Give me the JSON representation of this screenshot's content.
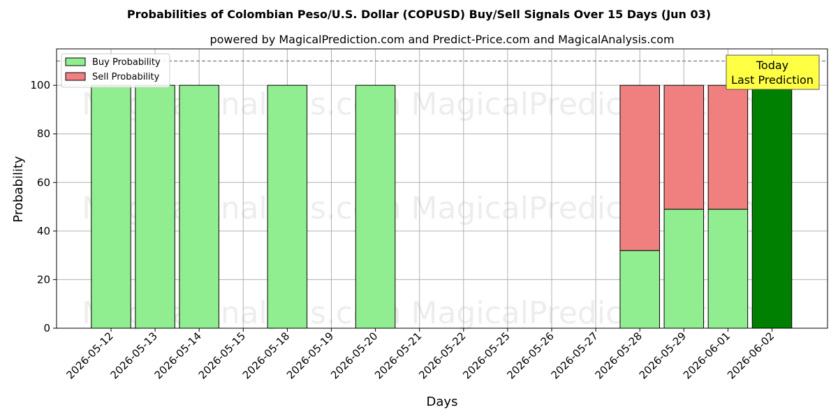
{
  "chart_data": {
    "type": "bar",
    "title": "Probabilities of Colombian Peso/U.S. Dollar (COPUSD) Buy/Sell Signals Over 15 Days (Jun 03)",
    "subtitle": "powered by MagicalPrediction.com and Predict-Price.com and MagicalAnalysis.com",
    "xlabel": "Days",
    "ylabel": "Probability",
    "ylim": [
      0,
      115
    ],
    "yticks": [
      0,
      20,
      40,
      60,
      80,
      100
    ],
    "grid": true,
    "legend_position": "top-left",
    "reference_line": 110,
    "categories": [
      "2026-05-12",
      "2026-05-13",
      "2026-05-14",
      "2026-05-15",
      "2026-05-18",
      "2026-05-19",
      "2026-05-20",
      "2026-05-21",
      "2026-05-22",
      "2026-05-25",
      "2026-05-26",
      "2026-05-27",
      "2026-05-28",
      "2026-05-29",
      "2026-06-01",
      "2026-06-02"
    ],
    "series": [
      {
        "name": "Buy Probability",
        "color": "#90ee90",
        "values": [
          100,
          100,
          100,
          0,
          100,
          0,
          100,
          0,
          0,
          0,
          0,
          0,
          32,
          49,
          49,
          100
        ]
      },
      {
        "name": "Sell Probability",
        "color": "#f08080",
        "values": [
          0,
          0,
          0,
          0,
          0,
          0,
          0,
          0,
          0,
          0,
          0,
          0,
          68,
          51,
          51,
          0
        ]
      }
    ],
    "highlight": {
      "category": "2026-06-02",
      "color": "#008000"
    },
    "annotation": {
      "lines": [
        "Today",
        "Last Prediction"
      ],
      "background": "#ffff44"
    },
    "watermarks": [
      "MagicalAnalysis.com",
      "MagicalPrediction.com"
    ]
  }
}
